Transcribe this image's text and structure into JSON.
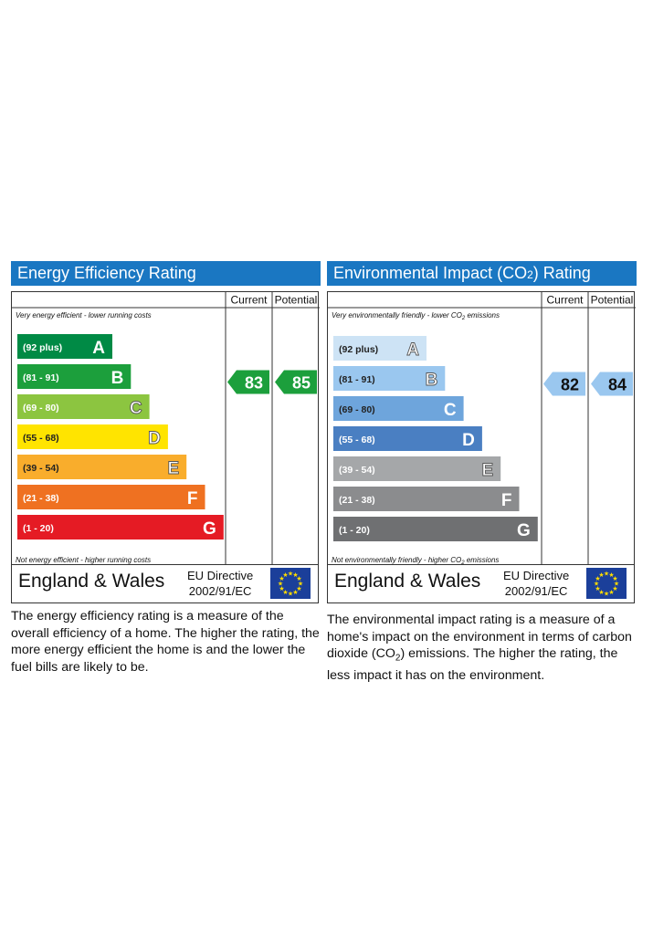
{
  "charts": [
    {
      "id": "ee",
      "title": "Energy Efficiency Rating",
      "col_current": "Current",
      "col_potential": "Potential",
      "top_note": "Very energy efficient - lower running costs",
      "bottom_note": "Not energy efficient - higher running costs",
      "region": "England & Wales",
      "directive_line1": "EU Directive",
      "directive_line2": "2002/91/EC",
      "description": "The energy efficiency rating is a measure of the overall efficiency of a home. The higher the rating, the more energy efficient the home is and the lower the fuel bills are likely to be."
    },
    {
      "id": "ei",
      "title_prefix": "Environmental Impact (CO",
      "title_sub": "2",
      "title_suffix": ") Rating",
      "col_current": "Current",
      "col_potential": "Potential",
      "top_note_prefix": "Very environmentally friendly - lower CO",
      "top_note_sub": "2",
      "top_note_suffix": " emissions",
      "bottom_note_prefix": "Not environmentally friendly - higher CO",
      "bottom_note_sub": "2",
      "bottom_note_suffix": " emissions",
      "region": "England & Wales",
      "directive_line1": "EU Directive",
      "directive_line2": "2002/91/EC",
      "description_part1": "The environmental impact rating is a measure of a home's impact on the environment in terms of carbon dioxide (CO",
      "description_sub": "2",
      "description_part2": ") emissions. The higher the rating, the less impact it has on the environment."
    }
  ],
  "chart_data": [
    {
      "type": "bar",
      "title": "Energy Efficiency Rating",
      "categories": [
        "A",
        "B",
        "C",
        "D",
        "E",
        "F",
        "G"
      ],
      "ranges": [
        "(92 plus)",
        "(81 - 91)",
        "(69 - 80)",
        "(55 - 68)",
        "(39 - 54)",
        "(21 - 38)",
        "(1 - 20)"
      ],
      "colors": [
        "#008a45",
        "#1c9f3c",
        "#8cc540",
        "#ffe400",
        "#f9ad2c",
        "#ef7121",
        "#e51b24"
      ],
      "letter_style": [
        "filled",
        "filled",
        "outline",
        "outline",
        "outline",
        "filled",
        "filled"
      ],
      "current": 83,
      "current_band": "B",
      "current_color": "#1c9f3c",
      "potential": 85,
      "potential_band": "B",
      "potential_color": "#1c9f3c"
    },
    {
      "type": "bar",
      "title": "Environmental Impact (CO2) Rating",
      "categories": [
        "A",
        "B",
        "C",
        "D",
        "E",
        "F",
        "G"
      ],
      "ranges": [
        "(92 plus)",
        "(81 - 91)",
        "(69 - 80)",
        "(55 - 68)",
        "(39 - 54)",
        "(21 - 38)",
        "(1 - 20)"
      ],
      "colors": [
        "#cde3f5",
        "#9ac7ef",
        "#6ea5dc",
        "#4a7fc2",
        "#a5a7a9",
        "#8b8c8e",
        "#6f7072"
      ],
      "letter_style": [
        "outline",
        "outline",
        "filled",
        "filled",
        "outline",
        "filled",
        "filled"
      ],
      "current": 82,
      "current_band": "B",
      "current_color": "#9ac7ef",
      "potential": 84,
      "potential_band": "B",
      "potential_color": "#9ac7ef"
    }
  ]
}
